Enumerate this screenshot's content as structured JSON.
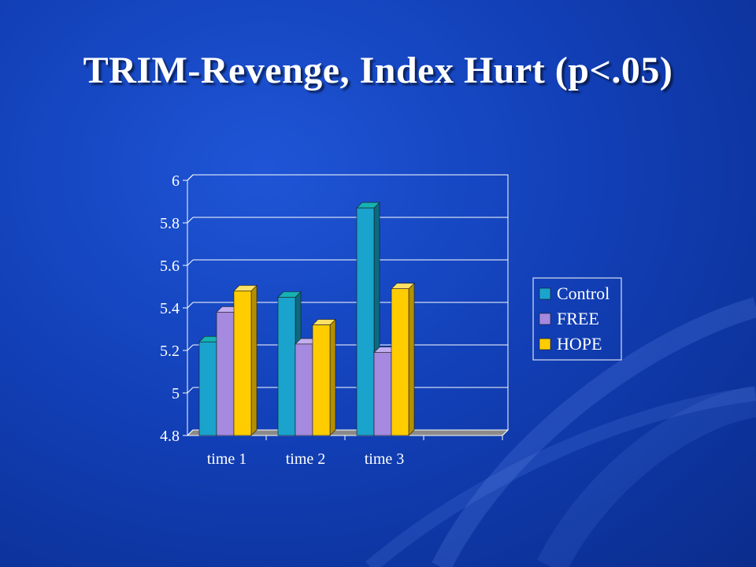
{
  "slide": {
    "title": "TRIM-Revenge, Index Hurt (p<.05)"
  },
  "colors": {
    "control": "#1aa3cc",
    "control_top": "#15b3b3",
    "control_side": "#0b6a80",
    "free": "#a58adf",
    "free_top": "#c2aef0",
    "free_side": "#6f57a8",
    "hope": "#ffcc00",
    "hope_top": "#ffe066",
    "hope_side": "#b38f00",
    "axis": "#ffffff"
  },
  "chart_data": {
    "type": "bar",
    "categories": [
      "time 1",
      "time 2",
      "time 3",
      ""
    ],
    "series": [
      {
        "name": "Control",
        "values": [
          5.24,
          5.45,
          5.87,
          null
        ]
      },
      {
        "name": "FREE",
        "values": [
          5.38,
          5.23,
          5.19,
          null
        ]
      },
      {
        "name": "HOPE",
        "values": [
          5.48,
          5.32,
          5.49,
          null
        ]
      }
    ],
    "ylim": [
      4.8,
      6
    ],
    "yticks": [
      "4.8",
      "5",
      "5.2",
      "5.4",
      "5.6",
      "5.8",
      "6"
    ],
    "legend_position": "right",
    "grid": true,
    "three_d": true
  }
}
